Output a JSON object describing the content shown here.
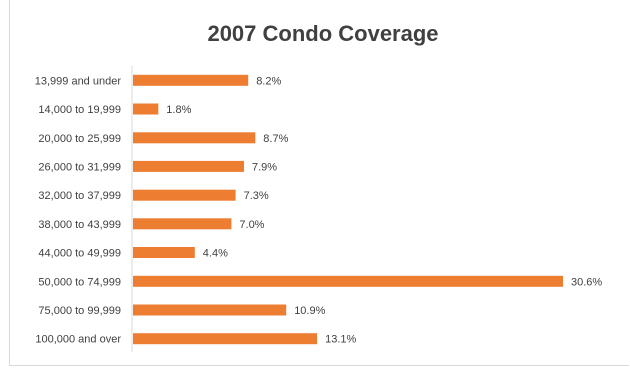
{
  "chart_data": {
    "type": "bar",
    "orientation": "horizontal",
    "title": "2007 Condo Coverage",
    "categories": [
      "13,999 and under",
      "14,000 to 19,999",
      "20,000 to 25,999",
      "26,000 to 31,999",
      "32,000 to 37,999",
      "38,000 to 43,999",
      "44,000 to 49,999",
      "50,000 to 74,999",
      "75,000 to 99,999",
      "100,000 and over"
    ],
    "values": [
      8.2,
      1.8,
      8.7,
      7.9,
      7.3,
      7.0,
      4.4,
      30.6,
      10.9,
      13.1
    ],
    "data_labels": [
      "8.2%",
      "1.8%",
      "8.7%",
      "7.9%",
      "7.3%",
      "7.0%",
      "4.4%",
      "30.6%",
      "10.9%",
      "13.1%"
    ],
    "unit": "%",
    "xlim": [
      0,
      30.6
    ],
    "grid": false,
    "legend": "none",
    "bar_color": "#ED7D31"
  }
}
